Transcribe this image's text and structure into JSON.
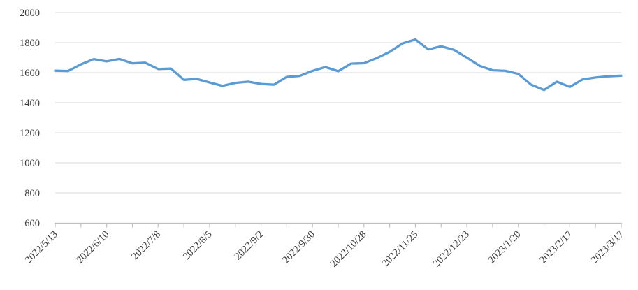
{
  "chart_data": {
    "type": "line",
    "title": "",
    "xlabel": "",
    "ylabel": "",
    "legend": "none",
    "grid": "horizontal",
    "num_points": 45,
    "values": [
      1613,
      1611,
      1655,
      1690,
      1675,
      1691,
      1662,
      1666,
      1624,
      1627,
      1552,
      1558,
      1535,
      1512,
      1532,
      1540,
      1525,
      1520,
      1572,
      1578,
      1612,
      1637,
      1610,
      1660,
      1663,
      1697,
      1738,
      1795,
      1821,
      1755,
      1776,
      1752,
      1700,
      1645,
      1616,
      1612,
      1592,
      1520,
      1485,
      1540,
      1505,
      1555,
      1568,
      1576,
      1580
    ],
    "x_tick_labels": [
      "2022/5/13",
      "2022/6/10",
      "2022/7/8",
      "2022/8/5",
      "2022/9/2",
      "2022/9/30",
      "2022/10/28",
      "2022/11/25",
      "2022/12/23",
      "2023/1/20",
      "2023/2/17",
      "2023/3/17"
    ],
    "x_tick_positions": [
      0,
      4,
      8,
      12,
      16,
      20,
      24,
      28,
      32,
      36,
      40,
      44
    ],
    "y_ticks": [
      600,
      800,
      1000,
      1200,
      1400,
      1600,
      1800,
      2000
    ],
    "ylim": [
      600,
      2000
    ],
    "minor_tick_count": 23,
    "series_color": "#5B9BD5",
    "gridline_color": "#D9D9D9",
    "axis_color": "#BFBFBF",
    "label_color": "#3d3d3d"
  }
}
